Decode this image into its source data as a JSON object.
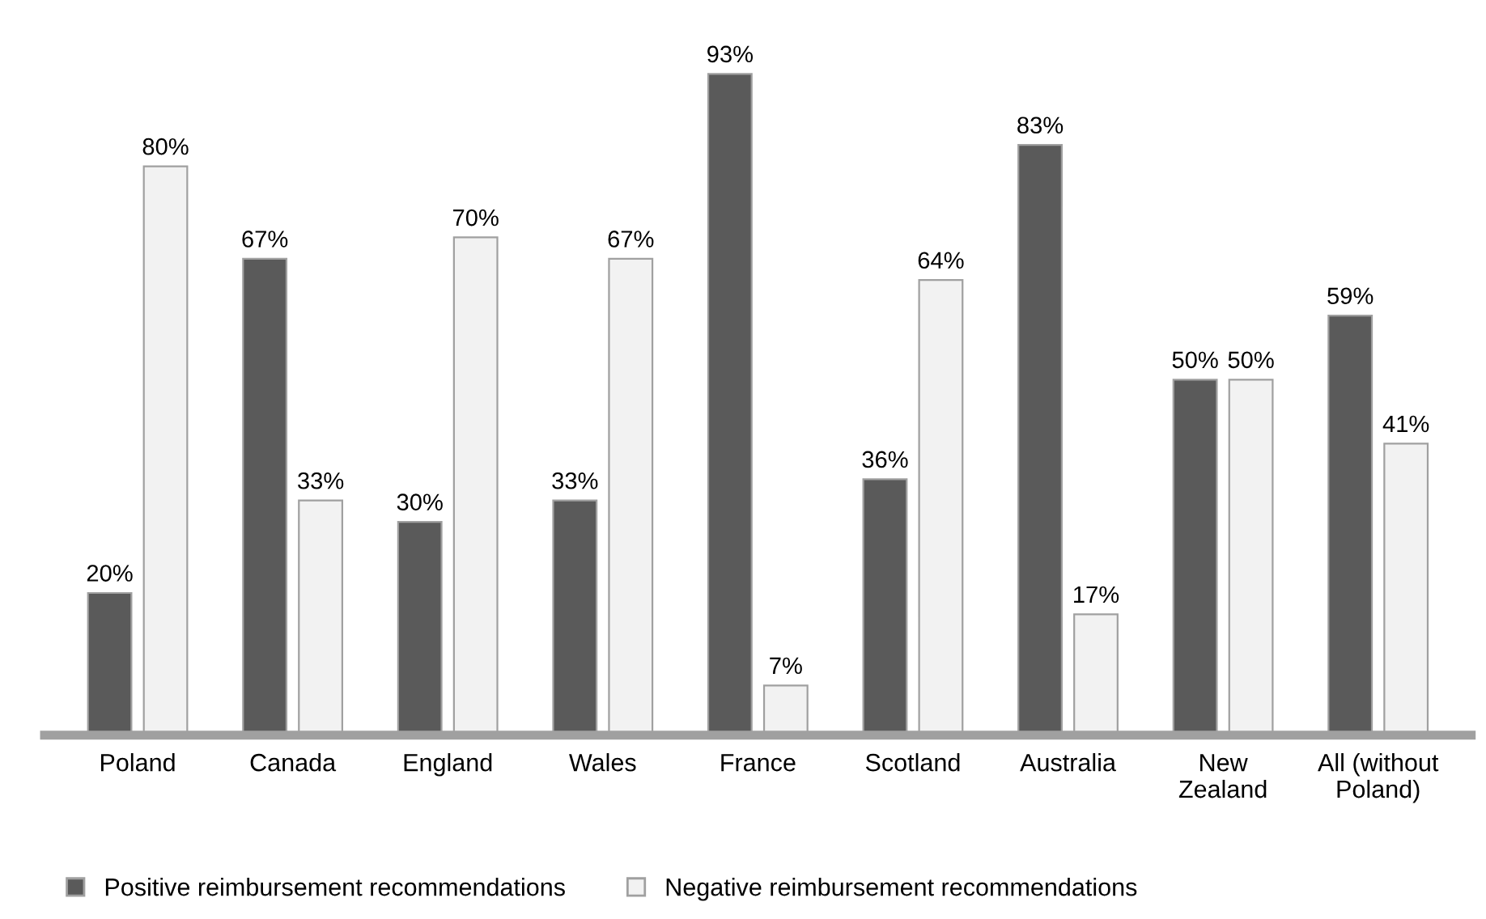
{
  "chart_data": {
    "type": "bar",
    "categories": [
      "Poland",
      "Canada",
      "England",
      "Wales",
      "France",
      "Scotland",
      "Australia",
      "New\nZealand",
      "All (without\nPoland)"
    ],
    "series": [
      {
        "name": "Positive reimbursement recommendations",
        "color": "#5a5a5a",
        "values": [
          20,
          67,
          30,
          33,
          93,
          36,
          83,
          50,
          59
        ],
        "value_labels": [
          "20%",
          "67%",
          "30%",
          "33%",
          "93%",
          "36%",
          "83%",
          "50%",
          "59%"
        ]
      },
      {
        "name": "Negative reimbursement recommendations",
        "color": "#f2f2f2",
        "values": [
          80,
          33,
          70,
          67,
          7,
          64,
          17,
          50,
          41
        ],
        "value_labels": [
          "80%",
          "33%",
          "70%",
          "67%",
          "7%",
          "64%",
          "17%",
          "50%",
          "41%"
        ]
      }
    ],
    "legend": "bottom",
    "grid": false
  }
}
